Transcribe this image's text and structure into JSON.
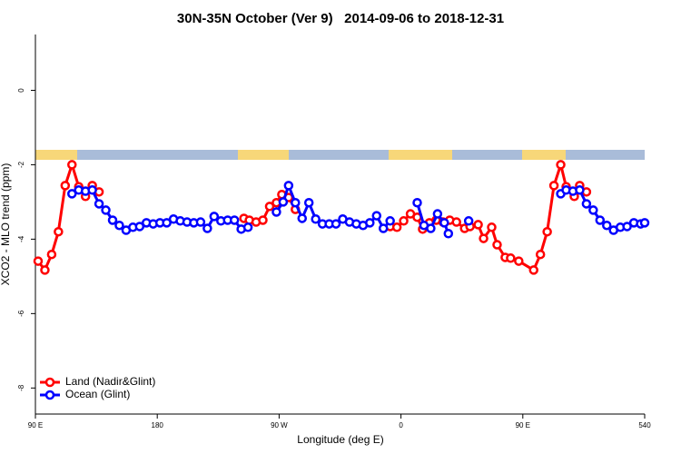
{
  "chart_data": {
    "type": "line",
    "title": "30N-35N October (Ver 9)   2014-09-06 to 2018-12-31",
    "x_label": "Longitude (deg E)",
    "y_label": "XCO2 - MLO trend (ppm)",
    "xlim": [
      90,
      540
    ],
    "ylim": [
      -8.7,
      1.5
    ],
    "xticks": [
      {
        "value": 90,
        "label": "90 E"
      },
      180,
      {
        "value": 270,
        "label": "90 W"
      },
      {
        "value": 360,
        "label": "0"
      },
      {
        "value": 450,
        "label": "90 E"
      },
      540
    ],
    "yticks": [
      0,
      -2,
      -4,
      -6,
      -8
    ],
    "legend": "bottom-left",
    "series": [
      {
        "name": "Land (Nadir&Glint)",
        "color": "#ff0000",
        "x": [
          92,
          97,
          102,
          107,
          112,
          117,
          122,
          127,
          132,
          137,
          null,
          244,
          248,
          253,
          258,
          263,
          268,
          272,
          277,
          282,
          null,
          352,
          357,
          362,
          367,
          372,
          376,
          381,
          386,
          391,
          396,
          401,
          407,
          411,
          417,
          421,
          427,
          431,
          437,
          441,
          447,
          458,
          463,
          468,
          473,
          478,
          482,
          488,
          492,
          497
        ],
        "values": [
          -4.59,
          -4.83,
          -4.41,
          -3.8,
          -2.56,
          -2.0,
          -2.59,
          -2.85,
          -2.56,
          -2.73,
          null,
          -3.44,
          -3.49,
          -3.54,
          -3.49,
          -3.12,
          -3.02,
          -2.8,
          -2.88,
          -3.2,
          null,
          -3.66,
          -3.68,
          -3.51,
          -3.32,
          -3.41,
          -3.73,
          -3.56,
          -3.49,
          -3.54,
          -3.49,
          -3.54,
          -3.71,
          -3.66,
          -3.61,
          -3.98,
          -3.68,
          -4.15,
          -4.49,
          -4.51,
          -4.59,
          -4.83,
          -4.41,
          -3.8,
          -2.56,
          -2.0,
          -2.59,
          -2.85,
          -2.56,
          -2.73
        ]
      },
      {
        "name": "Ocean (Glint)",
        "color": "#0000ff",
        "x": [
          117,
          122,
          127,
          132,
          137,
          142,
          147,
          152,
          157,
          162,
          167,
          172,
          177,
          182,
          187,
          192,
          197,
          202,
          207,
          212,
          217,
          222,
          227,
          232,
          237,
          242,
          247,
          null,
          268,
          273,
          277,
          282,
          287,
          292,
          297,
          302,
          307,
          312,
          317,
          322,
          327,
          332,
          337,
          342,
          347,
          352,
          null,
          372,
          377,
          382,
          387,
          392,
          395,
          null,
          410,
          null,
          478,
          482,
          487,
          492,
          497,
          502,
          507,
          512,
          517,
          522,
          527,
          532,
          537,
          540
        ],
        "values": [
          -2.78,
          -2.68,
          -2.71,
          -2.68,
          -3.05,
          -3.22,
          -3.49,
          -3.63,
          -3.76,
          -3.68,
          -3.66,
          -3.56,
          -3.59,
          -3.56,
          -3.56,
          -3.46,
          -3.51,
          -3.54,
          -3.56,
          -3.54,
          -3.71,
          -3.39,
          -3.51,
          -3.49,
          -3.49,
          -3.73,
          -3.68,
          null,
          -3.27,
          -3.0,
          -2.56,
          -3.02,
          -3.44,
          -3.02,
          -3.46,
          -3.59,
          -3.59,
          -3.59,
          -3.46,
          -3.54,
          -3.59,
          -3.63,
          -3.56,
          -3.37,
          -3.71,
          -3.51,
          null,
          -3.02,
          -3.63,
          -3.71,
          -3.32,
          -3.56,
          -3.85,
          null,
          -3.51,
          null,
          -2.78,
          -2.68,
          -2.71,
          -2.68,
          -3.05,
          -3.22,
          -3.49,
          -3.63,
          -3.76,
          -3.68,
          -3.66,
          -3.56,
          -3.59,
          -3.56
        ]
      }
    ]
  }
}
